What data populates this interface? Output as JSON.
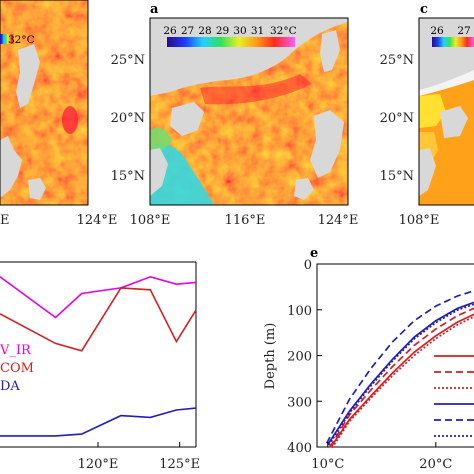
{
  "panels": {
    "left_map": {
      "colorbar_last_label": "32°C",
      "x_ticks": [
        "E",
        "124°E"
      ]
    },
    "map_a": {
      "letter": "a",
      "colorbar_labels": [
        "26",
        "27",
        "28",
        "29",
        "30",
        "31",
        "32°C"
      ],
      "y_ticks": [
        "25°N",
        "20°N",
        "15°N"
      ],
      "x_ticks": [
        "108°E",
        "116°E",
        "124°E"
      ]
    },
    "map_c": {
      "letter": "c",
      "colorbar_labels": [
        "26",
        "27"
      ],
      "y_ticks": [
        "25°N",
        "20°N",
        "15°N"
      ],
      "x_ticks": [
        "108°E"
      ]
    },
    "panel_e": {
      "letter": "e",
      "y_label": "Depth (m)"
    }
  },
  "chart_data": [
    {
      "type": "line",
      "x_ticks": [
        "120°E",
        "125°E"
      ],
      "xlim": [
        114.0,
        126.0
      ],
      "ylim": [
        0,
        1
      ],
      "legend_labels": [
        "V_IR",
        "COM",
        "DA"
      ],
      "series": [
        {
          "name": "V_IR",
          "color": "#e600e6",
          "x": [
            114.0,
            117.4,
            119.0,
            121.4,
            123.2,
            124.8,
            126.0
          ],
          "y": [
            0.92,
            0.7,
            0.83,
            0.86,
            0.92,
            0.88,
            0.89
          ]
        },
        {
          "name": "COM",
          "color": "#d42020",
          "x": [
            114.0,
            117.4,
            119.0,
            121.4,
            123.2,
            124.8,
            126.0
          ],
          "y": [
            0.72,
            0.56,
            0.52,
            0.86,
            0.85,
            0.57,
            0.74
          ]
        },
        {
          "name": "DA",
          "color": "#1f1fb8",
          "x": [
            114.0,
            117.4,
            119.0,
            121.4,
            123.2,
            124.8,
            126.0
          ],
          "y": [
            0.06,
            0.06,
            0.07,
            0.17,
            0.16,
            0.2,
            0.21
          ]
        }
      ]
    },
    {
      "type": "line",
      "y_ticks": [
        "0",
        "100",
        "200",
        "300",
        "400"
      ],
      "x_ticks": [
        "10°C",
        "20°C"
      ],
      "xlim": [
        9.0,
        24.0
      ],
      "ylim": [
        0,
        400
      ],
      "series": [
        {
          "color": "#d42020",
          "dash": "solid",
          "x": [
            10.3,
            12.0,
            14.0,
            16.0,
            18.0,
            20.0,
            22.0,
            24.0
          ],
          "y": [
            400,
            340,
            288,
            238,
            193,
            157,
            127,
            105
          ]
        },
        {
          "color": "#d42020",
          "dash": "dashed",
          "x": [
            10.2,
            12.0,
            14.0,
            16.0,
            18.0,
            20.0,
            22.0,
            24.0
          ],
          "y": [
            400,
            330,
            275,
            224,
            178,
            142,
            113,
            92
          ]
        },
        {
          "color": "#d42020",
          "dash": "dotted",
          "x": [
            10.4,
            12.0,
            14.0,
            16.0,
            18.0,
            20.0,
            22.0,
            24.0
          ],
          "y": [
            402,
            344,
            293,
            244,
            200,
            163,
            133,
            110
          ]
        },
        {
          "color": "#1f1fb8",
          "dash": "solid",
          "x": [
            10.0,
            12.0,
            14.0,
            16.0,
            18.0,
            20.0,
            22.0,
            24.0
          ],
          "y": [
            395,
            322,
            262,
            208,
            160,
            124,
            97,
            80
          ]
        },
        {
          "color": "#1f1fb8",
          "dash": "dashed",
          "x": [
            9.9,
            12.0,
            14.0,
            16.0,
            18.0,
            20.0,
            22.0,
            24.0
          ],
          "y": [
            392,
            296,
            228,
            170,
            124,
            92,
            70,
            55
          ]
        },
        {
          "color": "#1f1fb8",
          "dash": "dotted",
          "x": [
            10.1,
            12.0,
            14.0,
            16.0,
            18.0,
            20.0,
            22.0,
            24.0
          ],
          "y": [
            396,
            326,
            266,
            212,
            164,
            128,
            101,
            84
          ]
        }
      ],
      "legend": [
        {
          "color": "#d42020",
          "dash": "solid"
        },
        {
          "color": "#d42020",
          "dash": "dashed"
        },
        {
          "color": "#d42020",
          "dash": "dotted"
        },
        {
          "color": "#1f1fb8",
          "dash": "solid"
        },
        {
          "color": "#1f1fb8",
          "dash": "dashed"
        },
        {
          "color": "#1f1fb8",
          "dash": "dotted"
        }
      ]
    }
  ]
}
